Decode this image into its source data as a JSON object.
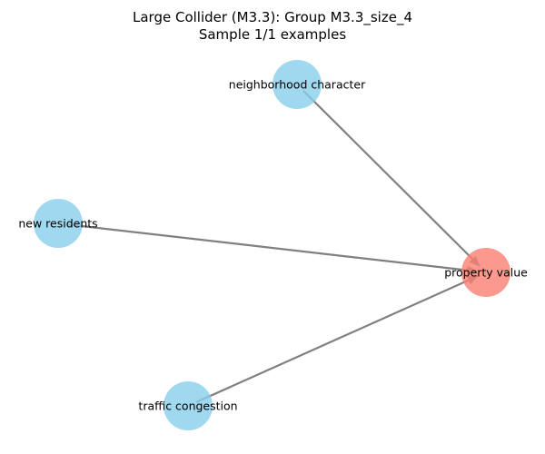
{
  "title": "Large Collider (M3.3): Group M3.3_size_4",
  "subtitle": "Sample 1/1 examples",
  "colors": {
    "cause_node": "#87ceeb",
    "effect_node": "#fa8072",
    "edge": "#808080",
    "background": "#ffffff"
  },
  "nodes": [
    {
      "id": "neighborhood_character",
      "label": "neighborhood character",
      "role": "cause"
    },
    {
      "id": "new_residents",
      "label": "new residents",
      "role": "cause"
    },
    {
      "id": "property_value",
      "label": "property value",
      "role": "effect"
    },
    {
      "id": "traffic_congestion",
      "label": "traffic congestion",
      "role": "cause"
    }
  ],
  "edges": [
    {
      "from": "neighborhood_character",
      "to": "property_value"
    },
    {
      "from": "new_residents",
      "to": "property_value"
    },
    {
      "from": "traffic_congestion",
      "to": "property_value"
    }
  ]
}
